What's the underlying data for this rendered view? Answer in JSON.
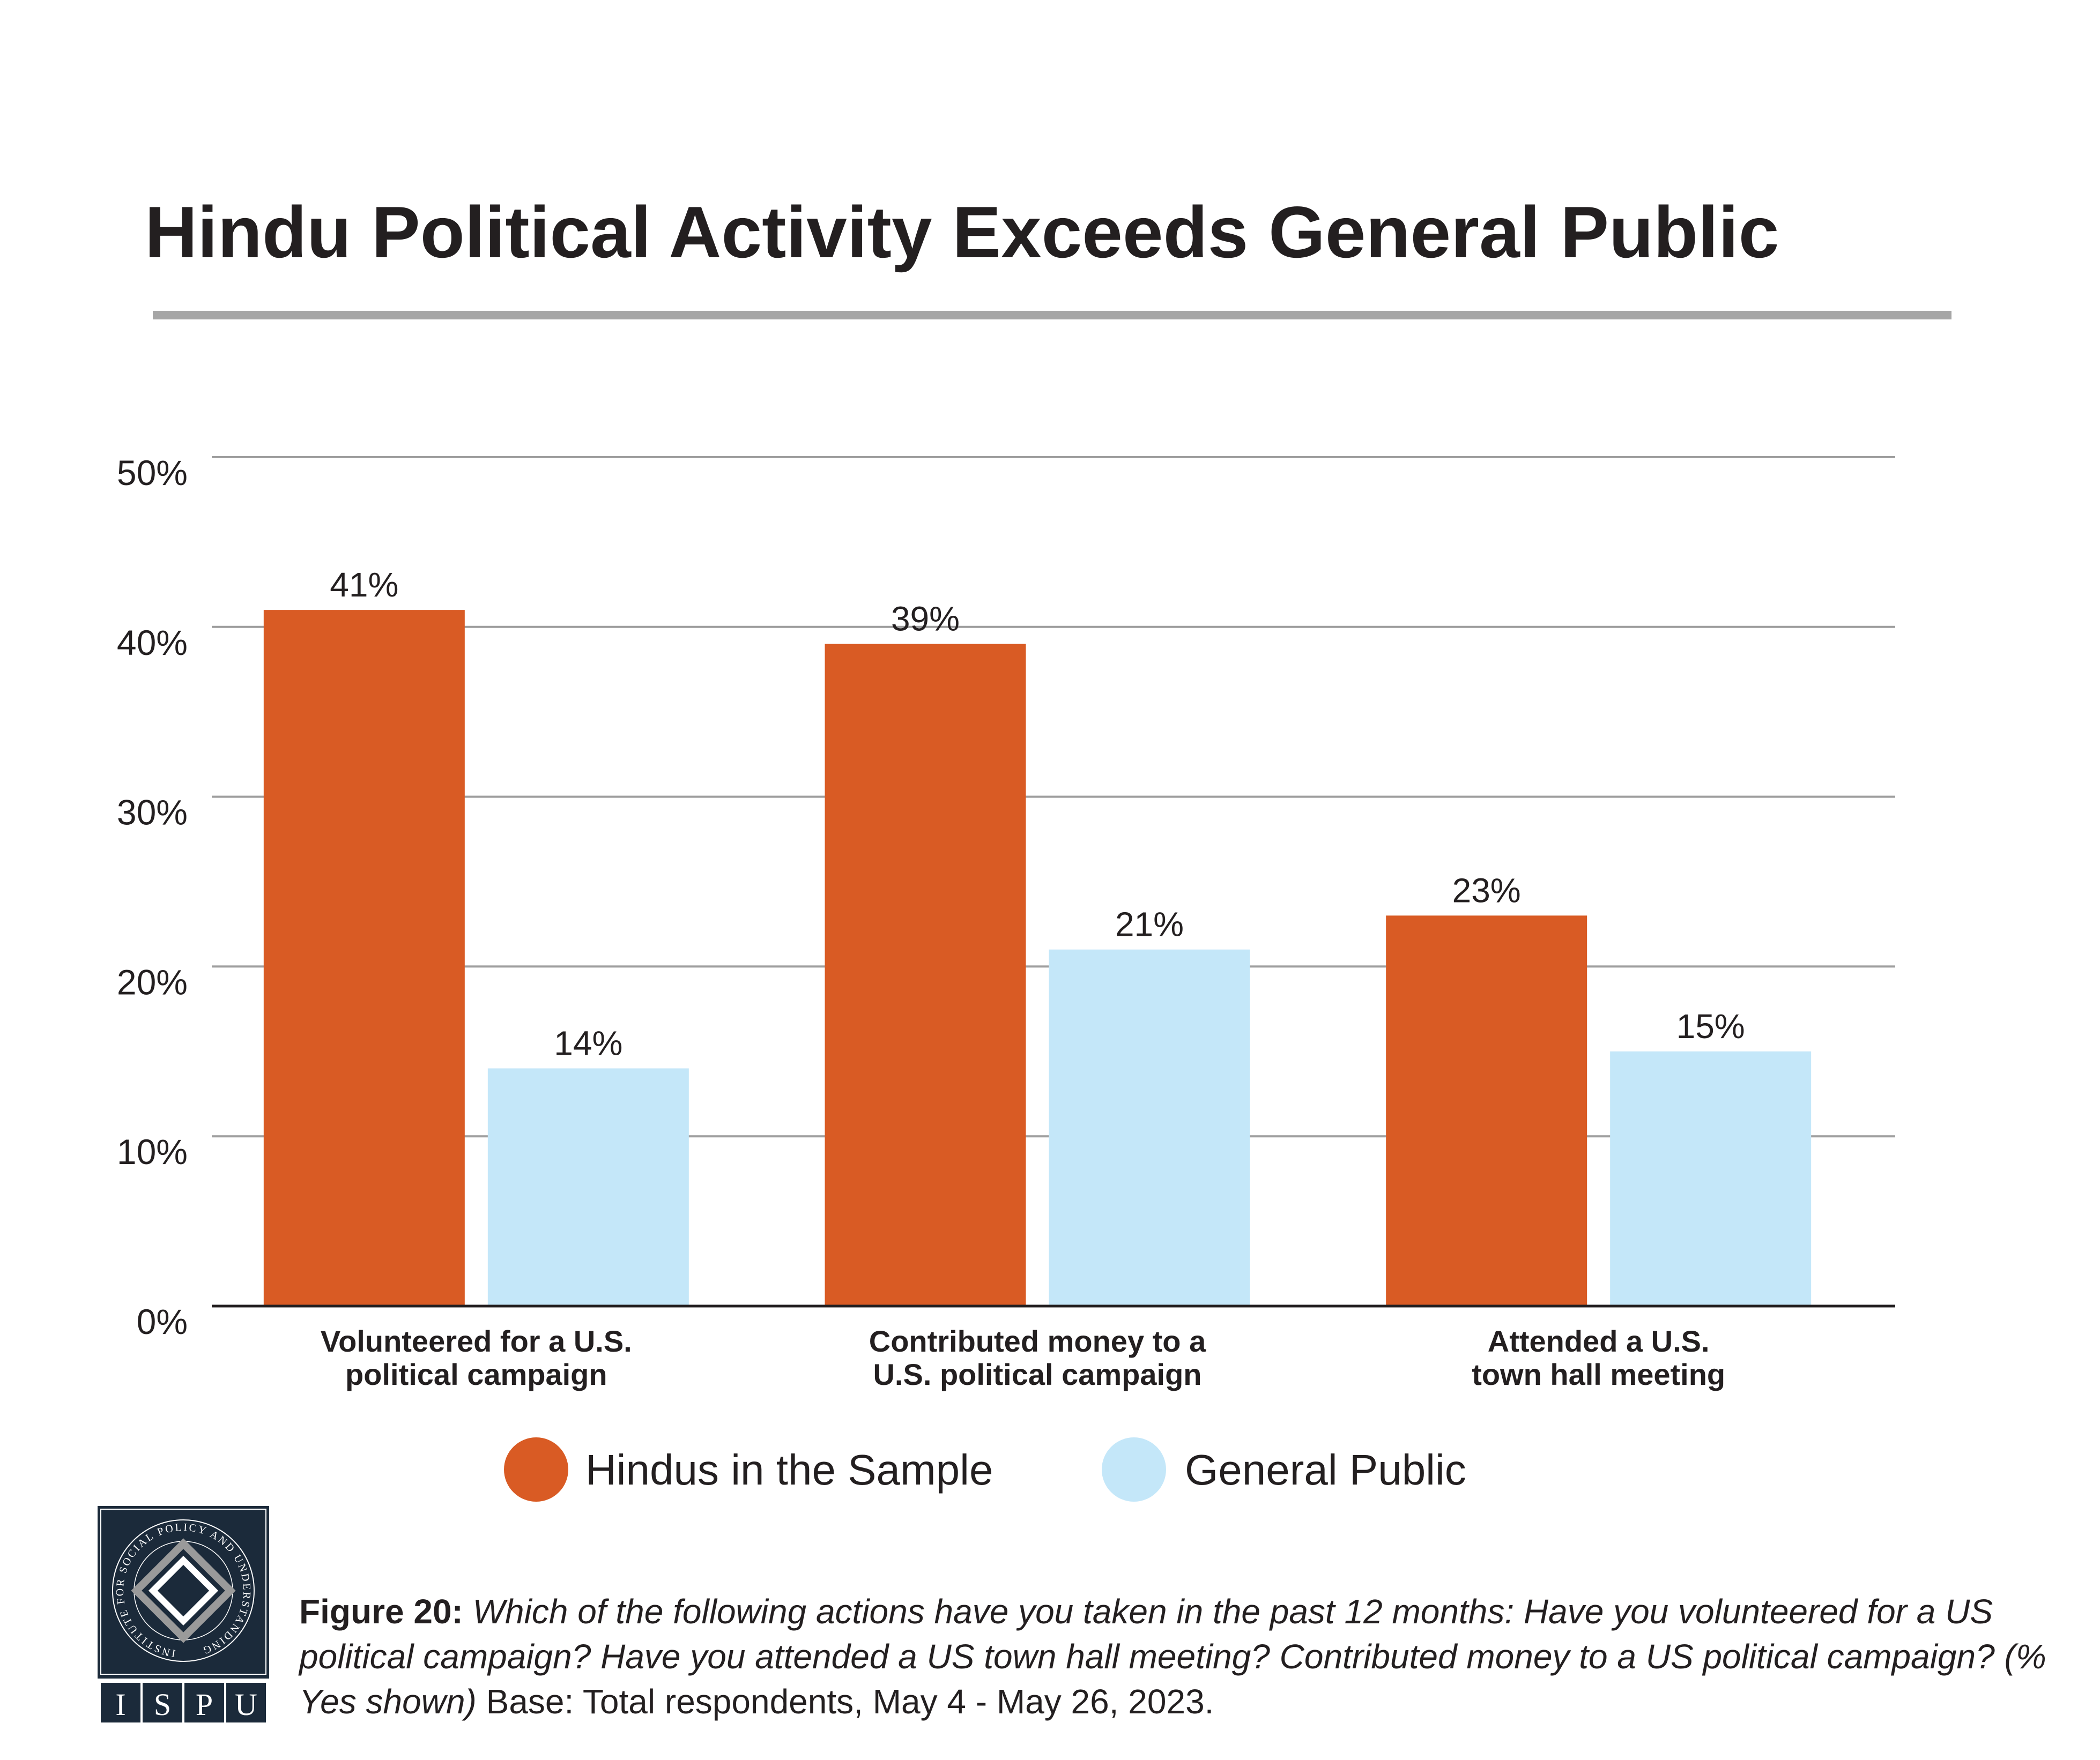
{
  "chart_data": {
    "type": "bar",
    "title": "Hindu Political Activity Exceeds General Public",
    "categories": [
      [
        "Volunteered for a U.S.",
        "political campaign"
      ],
      [
        "Contributed money to a",
        "U.S. political campaign"
      ],
      [
        "Attended a U.S.",
        "town hall meeting"
      ]
    ],
    "series": [
      {
        "name": "Hindus in the Sample",
        "values": [
          41,
          39,
          23
        ],
        "labels": [
          "41%",
          "39%",
          "23%"
        ],
        "color": "#d95b24"
      },
      {
        "name": "General Public",
        "values": [
          14,
          21,
          15
        ],
        "labels": [
          "14%",
          "21%",
          "15%"
        ],
        "color": "#c4e7f9"
      }
    ],
    "ylim": [
      0,
      50
    ],
    "yticks": [
      0,
      10,
      20,
      30,
      40,
      50
    ],
    "ytick_labels": [
      "0%",
      "10%",
      "20%",
      "30%",
      "40%",
      "50%"
    ],
    "grid": true,
    "legend": "bottom-center",
    "xlabel": "",
    "ylabel": ""
  },
  "logo": {
    "ring_text": "INSTITUTE FOR SOCIAL POLICY AND UNDERSTANDING",
    "letters": [
      "I",
      "S",
      "P",
      "U"
    ],
    "color": "#1b2a3a"
  },
  "caption": {
    "figure_label": "Figure 20:",
    "question": "Which of the following actions have you taken in the past 12 months: Have you volunteered for a US political campaign? Have you attended a US town hall meeting? Contributed money to a US political campaign? (% Yes shown)",
    "base": "Base: Total respondents, May 4 - May 26, 2023."
  }
}
